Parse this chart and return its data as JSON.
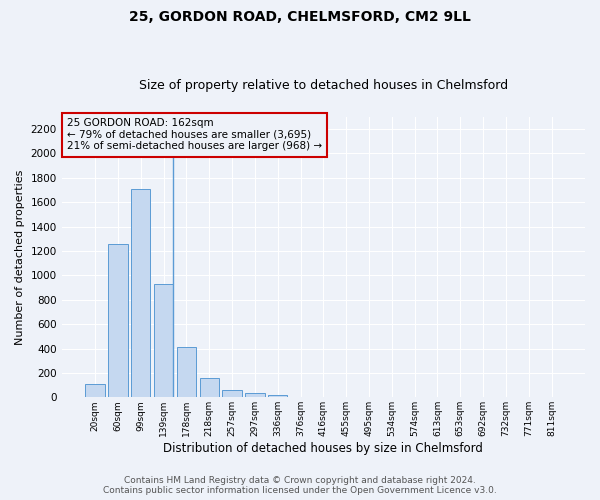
{
  "title1": "25, GORDON ROAD, CHELMSFORD, CM2 9LL",
  "title2": "Size of property relative to detached houses in Chelmsford",
  "xlabel": "Distribution of detached houses by size in Chelmsford",
  "ylabel": "Number of detached properties",
  "categories": [
    "20sqm",
    "60sqm",
    "99sqm",
    "139sqm",
    "178sqm",
    "218sqm",
    "257sqm",
    "297sqm",
    "336sqm",
    "376sqm",
    "416sqm",
    "455sqm",
    "495sqm",
    "534sqm",
    "574sqm",
    "613sqm",
    "653sqm",
    "692sqm",
    "732sqm",
    "771sqm",
    "811sqm"
  ],
  "values": [
    110,
    1260,
    1710,
    930,
    410,
    155,
    60,
    35,
    20,
    0,
    0,
    0,
    0,
    0,
    0,
    0,
    0,
    0,
    0,
    0,
    0
  ],
  "bar_color": "#c5d8f0",
  "bar_edge_color": "#5b9bd5",
  "annotation_box_text": "25 GORDON ROAD: 162sqm\n← 79% of detached houses are smaller (3,695)\n21% of semi-detached houses are larger (968) →",
  "box_edge_color": "#cc0000",
  "vline_x": 3.425,
  "ylim": [
    0,
    2300
  ],
  "yticks": [
    0,
    200,
    400,
    600,
    800,
    1000,
    1200,
    1400,
    1600,
    1800,
    2000,
    2200
  ],
  "footer_text": "Contains HM Land Registry data © Crown copyright and database right 2024.\nContains public sector information licensed under the Open Government Licence v3.0.",
  "background_color": "#eef2f9",
  "grid_color": "#ffffff",
  "title1_fontsize": 10,
  "title2_fontsize": 9,
  "annotation_fontsize": 7.5,
  "footer_fontsize": 6.5,
  "ylabel_fontsize": 8,
  "xlabel_fontsize": 8.5
}
